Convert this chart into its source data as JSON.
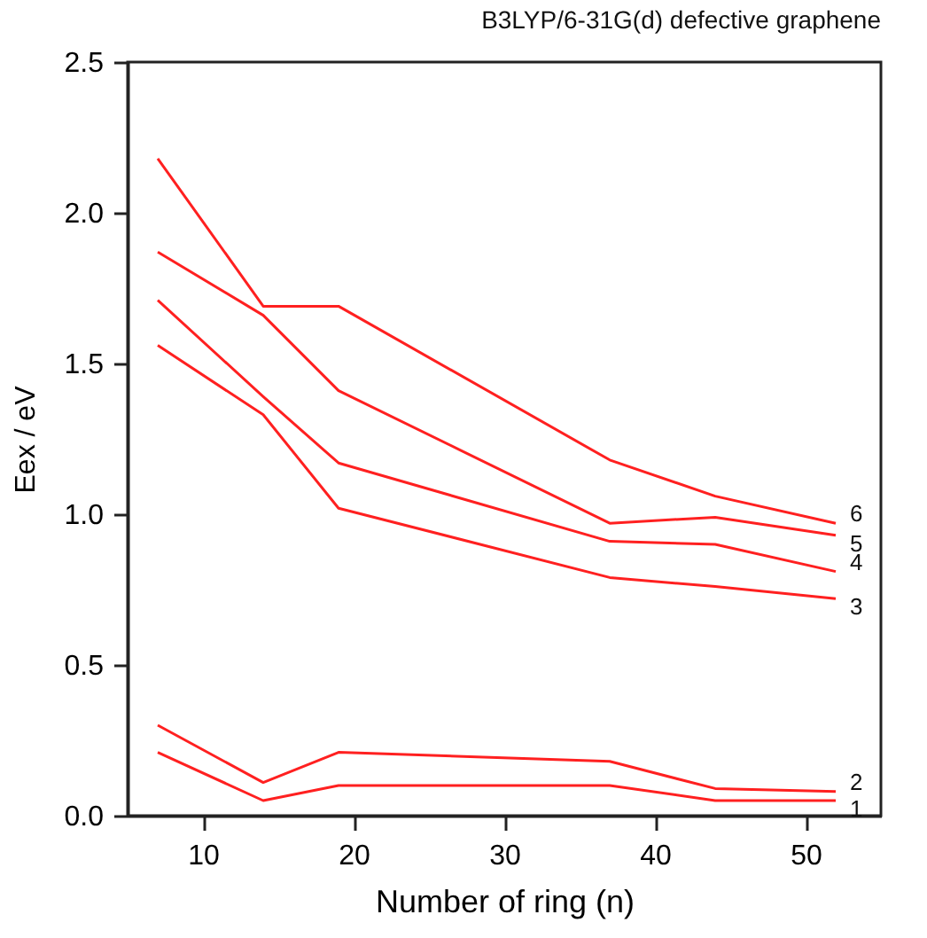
{
  "chart_data": {
    "type": "line",
    "title": "B3LYP/6-31G(d)    defective graphene",
    "xlabel": "Number of ring (n)",
    "ylabel": "Eex / eV",
    "x": [
      7,
      14,
      19,
      37,
      44,
      52
    ],
    "series": [
      {
        "name": "1",
        "color": "#ff2020",
        "values": [
          0.21,
          0.05,
          0.1,
          0.1,
          0.05,
          0.05
        ]
      },
      {
        "name": "2",
        "color": "#ff2020",
        "values": [
          0.3,
          0.11,
          0.21,
          0.18,
          0.09,
          0.08
        ]
      },
      {
        "name": "3",
        "color": "#ff2020",
        "values": [
          1.56,
          1.33,
          1.02,
          0.79,
          0.76,
          0.72
        ]
      },
      {
        "name": "4",
        "color": "#ff2020",
        "values": [
          1.71,
          1.39,
          1.17,
          0.91,
          0.9,
          0.81
        ]
      },
      {
        "name": "5",
        "color": "#ff2020",
        "values": [
          1.87,
          1.66,
          1.41,
          0.97,
          0.99,
          0.93
        ]
      },
      {
        "name": "6",
        "color": "#ff2020",
        "values": [
          2.18,
          1.69,
          1.69,
          1.18,
          1.06,
          0.97
        ]
      }
    ],
    "xlim": [
      5,
      55
    ],
    "xticks": [
      10,
      20,
      30,
      40,
      50
    ],
    "ylim": [
      0,
      2.5
    ],
    "yticks": [
      {
        "value": 0,
        "label": "0.0"
      },
      0.5,
      {
        "value": 1,
        "label": "1.0"
      },
      1.5,
      {
        "value": 2,
        "label": "2.0"
      },
      2.5
    ],
    "grid": false,
    "marker": "none",
    "line_style": "solid"
  }
}
